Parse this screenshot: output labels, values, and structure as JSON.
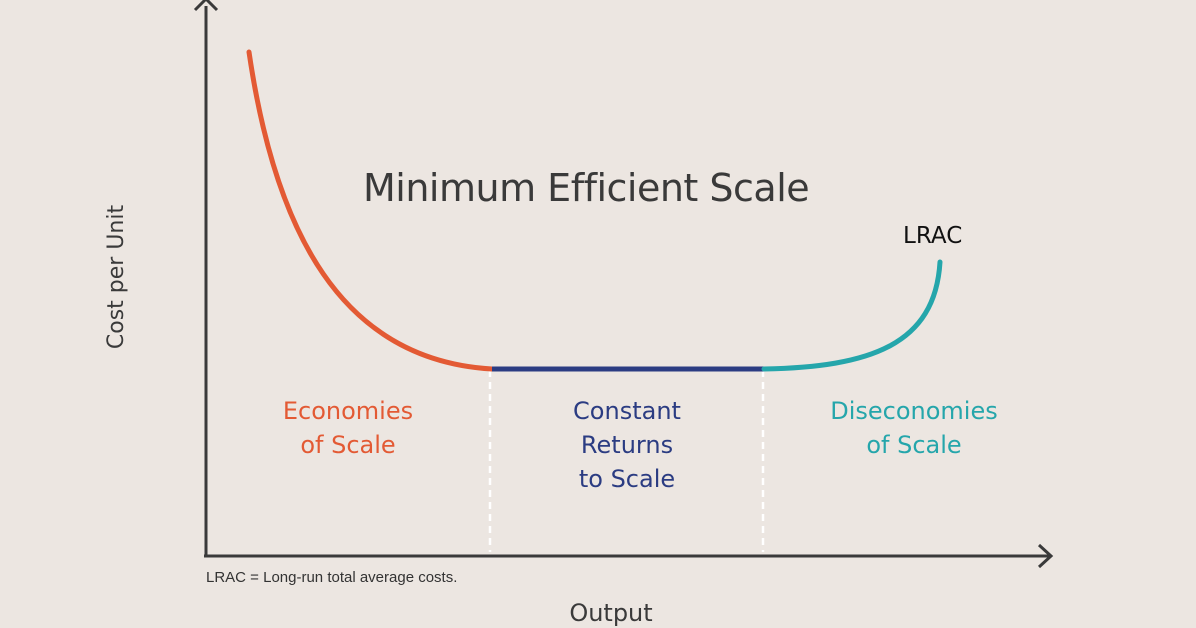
{
  "diagram": {
    "title": "Minimum Efficient Scale",
    "curve_label": "LRAC",
    "y_axis_label": "Cost per Unit",
    "x_axis_label": "Output",
    "footnote": "LRAC = Long-run total average costs.",
    "regions": {
      "economies": {
        "lines": [
          "Economies",
          "of Scale"
        ],
        "color": "#e35a34"
      },
      "constant": {
        "lines": [
          "Constant",
          "Returns",
          "to Scale"
        ],
        "color": "#2b3c82"
      },
      "diseconomies": {
        "lines": [
          "Diseconomies",
          "of Scale"
        ],
        "color": "#25a6ab"
      }
    },
    "colors": {
      "background": "#ece6e1",
      "axis": "#3a3a3a",
      "divider": "#ffffff"
    }
  }
}
